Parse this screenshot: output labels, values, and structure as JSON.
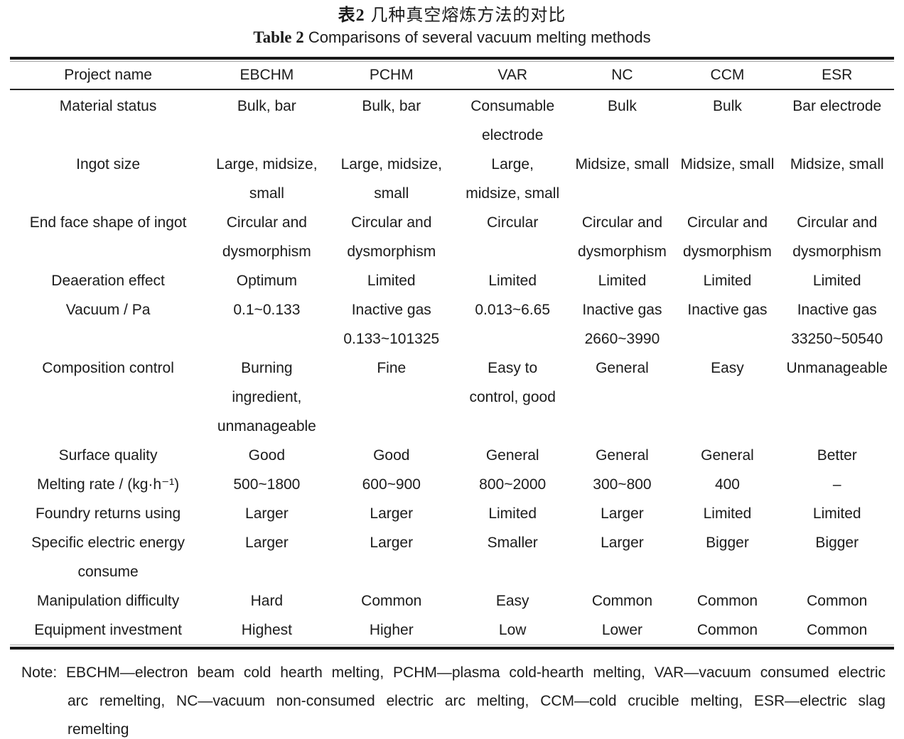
{
  "title": {
    "zh_bold": "表2",
    "zh_rest": " 几种真空熔炼方法的对比",
    "en_bold": "Table 2",
    "en_rest": " Comparisons of several vacuum melting methods"
  },
  "table": {
    "columns": [
      "Project name",
      "EBCHM",
      "PCHM",
      "VAR",
      "NC",
      "CCM",
      "ESR"
    ],
    "rows": [
      {
        "label": "Material status",
        "values": [
          "Bulk, bar",
          "Bulk, bar",
          "Consumable\nelectrode",
          "Bulk",
          "Bulk",
          "Bar electrode"
        ]
      },
      {
        "label": "Ingot size",
        "values": [
          "Large, midsize,\nsmall",
          "Large, midsize,\nsmall",
          "Large,\nmidsize, small",
          "Midsize, small",
          "Midsize, small",
          "Midsize, small"
        ]
      },
      {
        "label": "End face shape of ingot",
        "values": [
          "Circular and\ndysmorphism",
          "Circular and\ndysmorphism",
          "Circular",
          "Circular and\ndysmorphism",
          "Circular and\ndysmorphism",
          "Circular and\ndysmorphism"
        ]
      },
      {
        "label": "Deaeration effect",
        "values": [
          "Optimum",
          "Limited",
          "Limited",
          "Limited",
          "Limited",
          "Limited"
        ]
      },
      {
        "label": "Vacuum / Pa",
        "values": [
          "0.1~0.133",
          "Inactive gas\n0.133~101325",
          "0.013~6.65",
          "Inactive gas\n2660~3990",
          "Inactive gas",
          "Inactive gas\n33250~50540"
        ]
      },
      {
        "label": "Composition control",
        "values": [
          "Burning\ningredient,\nunmanageable",
          "Fine",
          "Easy to\ncontrol, good",
          "General",
          "Easy",
          "Unmanageable"
        ]
      },
      {
        "label": "Surface quality",
        "values": [
          "Good",
          "Good",
          "General",
          "General",
          "General",
          "Better"
        ]
      },
      {
        "label": "Melting rate / (kg·h⁻¹)",
        "values": [
          "500~1800",
          "600~900",
          "800~2000",
          "300~800",
          "400",
          "–"
        ]
      },
      {
        "label": "Foundry returns using",
        "values": [
          "Larger",
          "Larger",
          "Limited",
          "Larger",
          "Limited",
          "Limited"
        ]
      },
      {
        "label": "Specific electric energy\nconsume",
        "values": [
          "Larger",
          "Larger",
          "Smaller",
          "Larger",
          "Bigger",
          "Bigger"
        ]
      },
      {
        "label": "Manipulation difficulty",
        "values": [
          "Hard",
          "Common",
          "Easy",
          "Common",
          "Common",
          "Common"
        ]
      },
      {
        "label": "Equipment investment",
        "values": [
          "Highest",
          "Higher",
          "Low",
          "Lower",
          "Common",
          "Common"
        ]
      }
    ]
  },
  "note": {
    "lines": [
      "Note: EBCHM—electron beam cold hearth melting, PCHM—plasma cold-hearth melting, VAR—vacuum consumed electric",
      "arc remelting, NC—vacuum non-consumed electric arc melting, CCM—cold crucible melting, ESR—electric slag",
      "remelting"
    ]
  }
}
